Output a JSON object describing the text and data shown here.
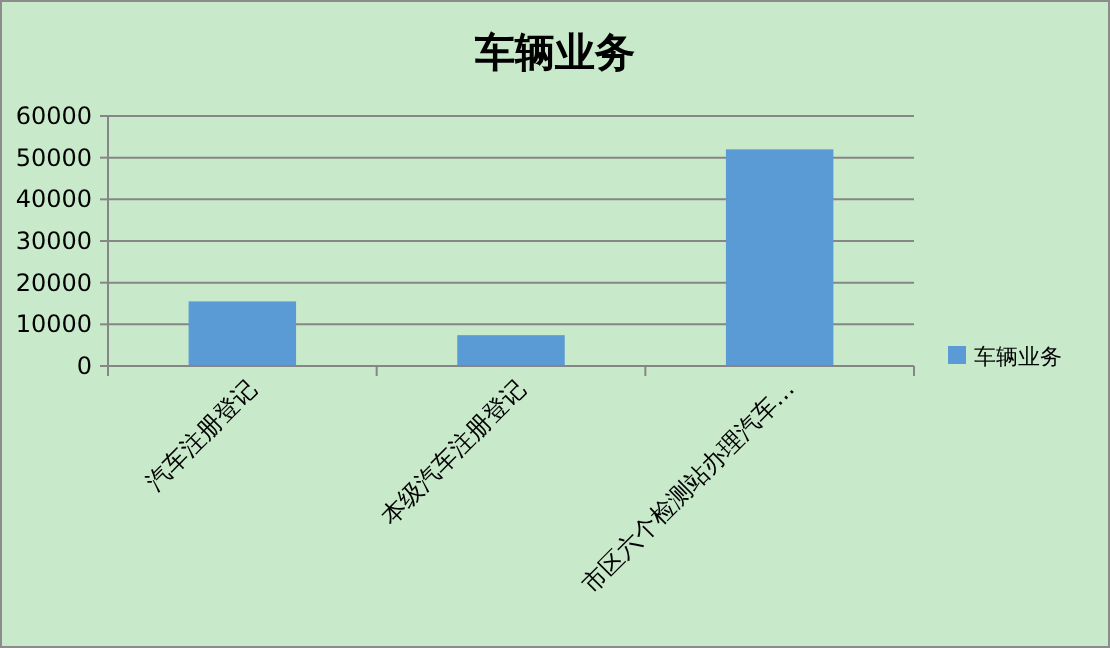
{
  "chart_data": {
    "type": "bar",
    "title": "车辆业务",
    "categories": [
      "汽车注册登记",
      "本级汽车注册登记",
      "市区六个检测站办理汽车…"
    ],
    "series": [
      {
        "name": "车辆业务",
        "color": "#5b9bd5",
        "values": [
          15500,
          7400,
          52000
        ]
      }
    ],
    "ylim": [
      0,
      60000
    ],
    "yticks": [
      0,
      10000,
      20000,
      30000,
      40000,
      50000,
      60000
    ],
    "grid": "y",
    "legend": "right"
  }
}
